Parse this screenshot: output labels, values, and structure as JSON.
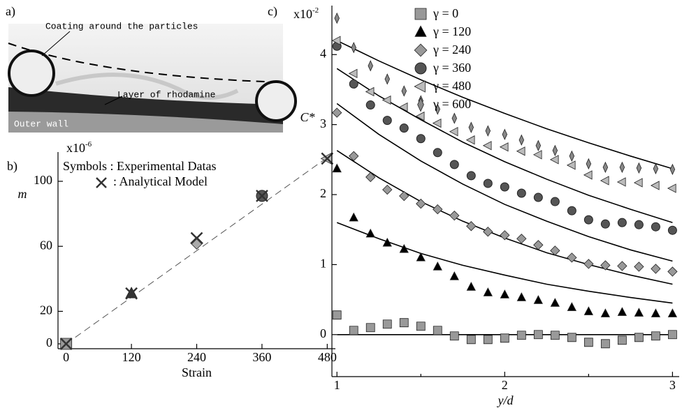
{
  "panel_a": {
    "label": "a)",
    "annotations": [
      "Coating around the particles",
      "Layer of rhodamine",
      "Outer wall"
    ]
  },
  "chart_data": [
    {
      "type": "scatter",
      "panel_label": "b)",
      "x_label": "Strain",
      "y_label": "m",
      "y_scale_label": "x10",
      "y_scale_exponent": "-6",
      "x": [
        0,
        120,
        240,
        360,
        480
      ],
      "xlim": [
        -15,
        495
      ],
      "xticks": [
        0,
        120,
        240,
        360,
        480
      ],
      "ylim": [
        -3,
        118
      ],
      "yticks": [
        0,
        20,
        60,
        100
      ],
      "series": [
        {
          "name": "Symbols : Experimental Datas",
          "values": [
            0,
            31,
            62,
            91,
            114
          ],
          "markers": [
            "square",
            "triangle",
            "diamond",
            "circle",
            "left-triangle"
          ],
          "colors": [
            "#999999",
            "#333333",
            "#aaaaaa",
            "#555555",
            "#bbbbbb"
          ]
        },
        {
          "name": ": Analytical Model",
          "marker": "cross",
          "color": "#333333",
          "values": [
            0,
            31,
            65,
            91,
            114
          ]
        }
      ],
      "fit_line": {
        "x": [
          0,
          490
        ],
        "values": [
          0,
          117
        ],
        "color": "#555555"
      }
    },
    {
      "type": "scatter",
      "panel_label": "c)",
      "x_label": "y/d",
      "y_label": "C*",
      "y_scale_label": "x10",
      "y_scale_exponent": "-2",
      "x": [
        1,
        1.1,
        1.2,
        1.3,
        1.4,
        1.5,
        1.6,
        1.7,
        1.8,
        1.9,
        2,
        2.1,
        2.2,
        2.3,
        2.4,
        2.5,
        2.6,
        2.7,
        2.8,
        2.9,
        3
      ],
      "xlim": [
        0.97,
        3.04
      ],
      "xticks": [
        1,
        2,
        3
      ],
      "xminor_ticks": [
        1.5,
        2.5
      ],
      "ylim": [
        -0.6,
        4.7
      ],
      "yticks": [
        0,
        1,
        2,
        3,
        4
      ],
      "series": [
        {
          "name": "γ = 0",
          "marker": "square",
          "color": "#999999",
          "values": [
            0.28,
            0.06,
            0.1,
            0.15,
            0.17,
            0.12,
            0.06,
            -0.02,
            -0.07,
            -0.07,
            -0.05,
            -0.01,
            0.0,
            -0.01,
            -0.04,
            -0.11,
            -0.13,
            -0.08,
            -0.04,
            -0.02,
            0.0
          ]
        },
        {
          "name": "γ = 120",
          "marker": "triangle",
          "color": "#000000",
          "values": [
            2.37,
            1.67,
            1.44,
            1.31,
            1.22,
            1.1,
            0.97,
            0.83,
            0.68,
            0.6,
            0.57,
            0.53,
            0.49,
            0.45,
            0.39,
            0.33,
            0.3,
            0.32,
            0.31,
            0.3,
            0.3
          ]
        },
        {
          "name": "γ = 240",
          "marker": "diamond",
          "color": "#999999",
          "values": [
            3.17,
            2.55,
            2.25,
            2.07,
            1.98,
            1.87,
            1.79,
            1.7,
            1.55,
            1.47,
            1.42,
            1.37,
            1.28,
            1.2,
            1.1,
            1.01,
            0.99,
            0.98,
            0.97,
            0.94,
            0.9
          ]
        },
        {
          "name": "γ = 360",
          "marker": "circle",
          "color": "#555555",
          "values": [
            4.12,
            3.58,
            3.28,
            3.06,
            2.95,
            2.8,
            2.6,
            2.43,
            2.27,
            2.16,
            2.11,
            2.02,
            1.96,
            1.9,
            1.77,
            1.64,
            1.58,
            1.6,
            1.57,
            1.54,
            1.49
          ]
        },
        {
          "name": "γ = 480",
          "marker": "left-triangle",
          "color": "#bbbbbb",
          "values": [
            4.2,
            3.73,
            3.47,
            3.35,
            3.25,
            3.12,
            3.02,
            2.9,
            2.78,
            2.7,
            2.68,
            2.62,
            2.57,
            2.5,
            2.42,
            2.28,
            2.2,
            2.18,
            2.17,
            2.13,
            2.09
          ]
        },
        {
          "name": "γ = 600",
          "marker": "thin-diamond",
          "color": "#888888",
          "values": [
            4.52,
            4.1,
            3.84,
            3.65,
            3.48,
            3.34,
            3.22,
            3.09,
            2.96,
            2.91,
            2.86,
            2.78,
            2.7,
            2.63,
            2.55,
            2.44,
            2.39,
            2.39,
            2.38,
            2.37,
            2.36
          ]
        }
      ],
      "curve_x": [
        1,
        1.25,
        1.5,
        1.75,
        2,
        2.25,
        2.5,
        2.75,
        3
      ],
      "curves": [
        {
          "color": "#000000",
          "values": [
            4.2,
            3.91,
            3.64,
            3.39,
            3.16,
            2.94,
            2.74,
            2.55,
            2.37
          ]
        },
        {
          "color": "#000000",
          "values": [
            3.8,
            3.41,
            3.07,
            2.75,
            2.47,
            2.22,
            1.99,
            1.79,
            1.6
          ]
        },
        {
          "color": "#000000",
          "values": [
            3.3,
            2.86,
            2.48,
            2.15,
            1.86,
            1.62,
            1.4,
            1.21,
            1.05
          ]
        },
        {
          "color": "#000000",
          "values": [
            2.63,
            2.24,
            1.9,
            1.62,
            1.38,
            1.17,
            1.0,
            0.85,
            0.72
          ]
        },
        {
          "color": "#000000",
          "values": [
            1.6,
            1.37,
            1.16,
            0.99,
            0.85,
            0.72,
            0.62,
            0.53,
            0.45
          ]
        },
        {
          "color": "#000000",
          "values": [
            0,
            0,
            0,
            0,
            0,
            0,
            0,
            0,
            0
          ]
        }
      ]
    }
  ]
}
